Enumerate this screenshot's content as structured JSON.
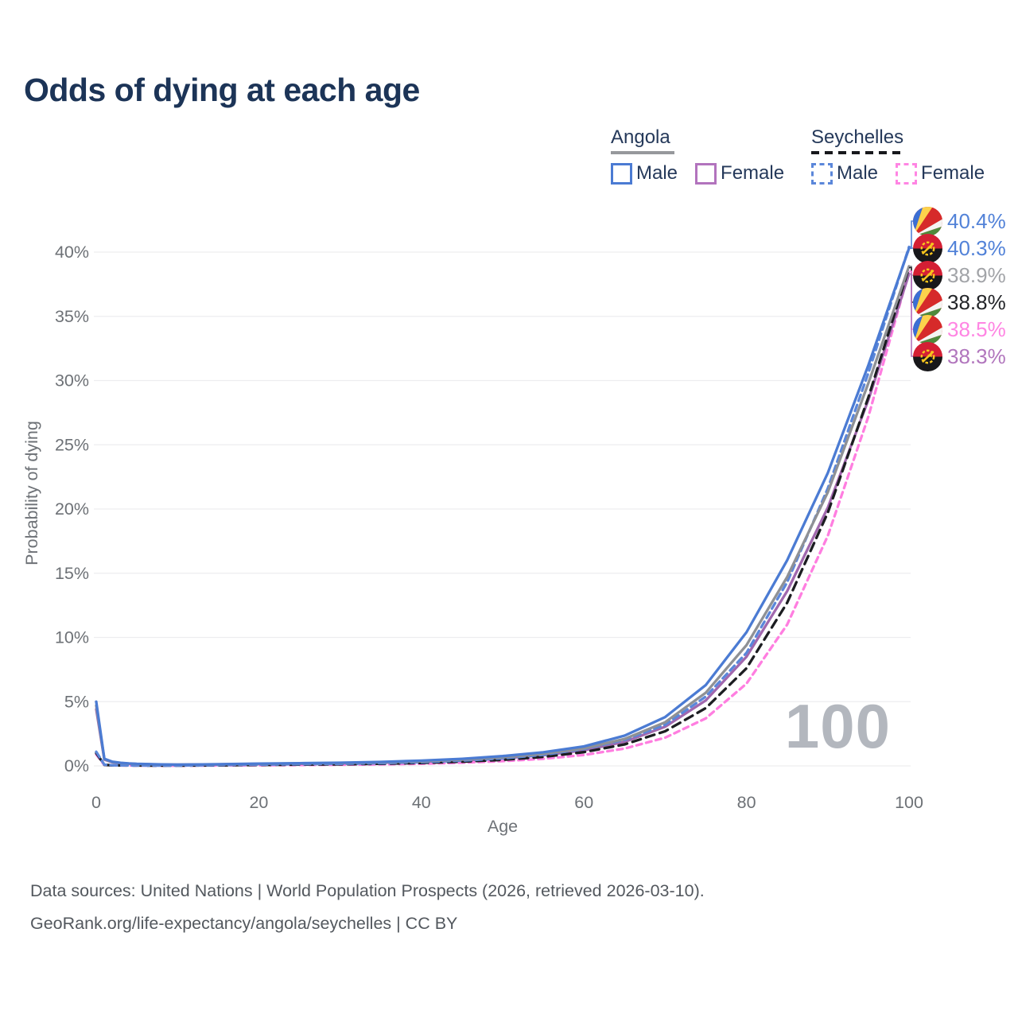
{
  "title": "Odds of dying at each age",
  "legend": {
    "groups": [
      {
        "label": "Angola",
        "style": "solid",
        "items": [
          {
            "label": "Male",
            "color": "#4b7bd3"
          },
          {
            "label": "Female",
            "color": "#b273bd"
          }
        ]
      },
      {
        "label": "Seychelles",
        "style": "dashed",
        "items": [
          {
            "label": "Male",
            "color": "#5b87da"
          },
          {
            "label": "Female",
            "color": "#ff85e3"
          }
        ]
      }
    ]
  },
  "watermark": "100",
  "footer": {
    "line1": "Data sources: United Nations | World Population Prospects (2026, retrieved 2026-03-10).",
    "line2": "GeoRank.org/life-expectancy/angola/seychelles | CC BY"
  },
  "chart_data": {
    "type": "line",
    "title": "Odds of dying at each age",
    "xlabel": "Age",
    "ylabel": "Probability of dying",
    "xlim": [
      0,
      100
    ],
    "ylim": [
      0,
      41
    ],
    "grid": "horizontal-only",
    "legend_position": "top-right",
    "x_ticks": [
      0,
      20,
      40,
      60,
      80,
      100
    ],
    "y_tick_values": [
      0,
      5,
      10,
      15,
      20,
      25,
      30,
      35,
      40
    ],
    "y_tick_labels": [
      "0%",
      "5%",
      "10%",
      "15%",
      "20%",
      "25%",
      "30%",
      "35%",
      "40%"
    ],
    "ages": [
      0,
      1,
      2,
      3,
      4,
      5,
      8,
      10,
      15,
      20,
      25,
      30,
      35,
      40,
      45,
      50,
      55,
      60,
      65,
      70,
      75,
      80,
      85,
      90,
      95,
      100
    ],
    "series": [
      {
        "name": "Seychelles Female",
        "country": "Seychelles",
        "sex": "Female",
        "color": "#ff7ee0",
        "dash": "7 5.5",
        "end_label": "38.5%",
        "end_value": 38.5,
        "end_label_color": "#ff85e3",
        "values": [
          0.9,
          0.07,
          0.04,
          0.033,
          0.029,
          0.026,
          0.021,
          0.019,
          0.032,
          0.05,
          0.07,
          0.09,
          0.12,
          0.17,
          0.25,
          0.37,
          0.55,
          0.85,
          1.35,
          2.2,
          3.7,
          6.4,
          11.0,
          17.9,
          27.2,
          38.5
        ]
      },
      {
        "name": "Angola Female",
        "country": "Angola",
        "sex": "Female",
        "color": "#a168ae",
        "dash": null,
        "end_label": "38.3%",
        "end_value": 38.3,
        "end_label_color": "#b176bd",
        "values": [
          4.4,
          0.49,
          0.28,
          0.21,
          0.17,
          0.14,
          0.095,
          0.09,
          0.11,
          0.14,
          0.16,
          0.19,
          0.25,
          0.32,
          0.43,
          0.59,
          0.83,
          1.21,
          1.87,
          3.05,
          5.1,
          8.5,
          13.6,
          20.1,
          28.5,
          38.3
        ]
      },
      {
        "name": "Seychelles (both sexes)",
        "country": "Seychelles",
        "sex": "Both",
        "color": "#1c1d21",
        "dash": "11 7",
        "end_label": "38.8%",
        "end_value": 38.8,
        "end_label_color": "#232529",
        "values": [
          1.0,
          0.08,
          0.045,
          0.037,
          0.032,
          0.028,
          0.024,
          0.022,
          0.045,
          0.075,
          0.1,
          0.125,
          0.165,
          0.23,
          0.33,
          0.47,
          0.7,
          1.07,
          1.67,
          2.7,
          4.5,
          7.6,
          12.7,
          19.7,
          28.7,
          38.8
        ]
      },
      {
        "name": "Seychelles Male",
        "country": "Seychelles",
        "sex": "Male",
        "color": "#5b87da",
        "dash": "8 5.5",
        "end_label": "40.4%",
        "end_value": 40.4,
        "end_label_color": "#5282d8",
        "values": [
          1.1,
          0.09,
          0.05,
          0.04,
          0.035,
          0.03,
          0.027,
          0.025,
          0.06,
          0.1,
          0.13,
          0.16,
          0.21,
          0.29,
          0.41,
          0.59,
          0.86,
          1.31,
          2.02,
          3.2,
          5.4,
          8.8,
          14.3,
          21.6,
          30.6,
          40.4
        ]
      },
      {
        "name": "Angola (both sexes)",
        "country": "Angola",
        "sex": "Both",
        "color": "#8f9195",
        "dash": null,
        "end_label": "38.9%",
        "end_value": 38.9,
        "end_label_color": "#a2a4a8",
        "values": [
          4.7,
          0.52,
          0.3,
          0.22,
          0.18,
          0.15,
          0.1,
          0.095,
          0.12,
          0.16,
          0.19,
          0.22,
          0.28,
          0.36,
          0.49,
          0.67,
          0.94,
          1.36,
          2.1,
          3.4,
          5.7,
          9.4,
          14.7,
          21.3,
          29.8,
          38.9
        ]
      },
      {
        "name": "Angola Male",
        "country": "Angola",
        "sex": "Male",
        "color": "#4b7bd3",
        "dash": null,
        "end_label": "40.3%",
        "end_value": 40.3,
        "end_label_color": "#5282d8",
        "values": [
          5.0,
          0.55,
          0.32,
          0.24,
          0.19,
          0.16,
          0.11,
          0.1,
          0.13,
          0.18,
          0.21,
          0.25,
          0.31,
          0.41,
          0.55,
          0.76,
          1.06,
          1.52,
          2.35,
          3.8,
          6.3,
          10.4,
          16.0,
          22.8,
          31.2,
          40.3
        ]
      }
    ]
  }
}
